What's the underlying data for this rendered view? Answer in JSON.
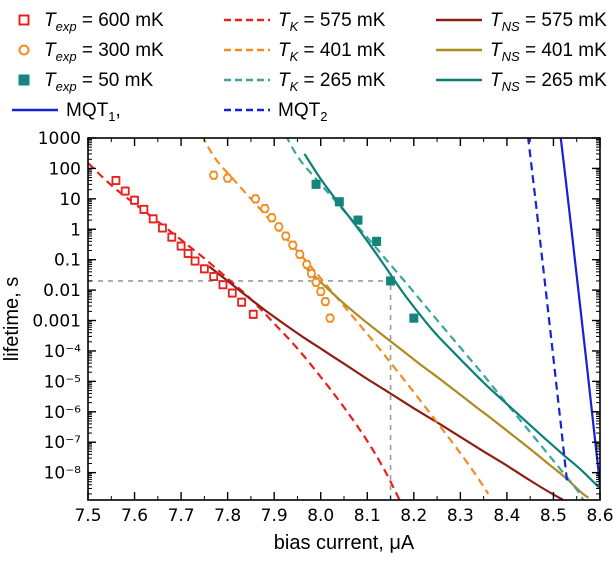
{
  "colors": {
    "red": "#e8211d",
    "dark_red": "#8e1d16",
    "orange": "#f18c22",
    "olive": "#ad8b21",
    "teal_dashed": "#3aa69e",
    "teal_solid": "#0d7f76",
    "teal_marker": "#15857b",
    "blue": "#1721d6",
    "gray": "#9c9c9c"
  },
  "legend": {
    "rows": [
      [
        {
          "id": "t-exp-600",
          "marker": "square-open",
          "color": "#e8211d",
          "label": {
            "pre": "T",
            "italic": true,
            "sub": "exp",
            "rest": " = 600 mK"
          }
        },
        {
          "id": "tk-575",
          "marker": "line-dashed",
          "color": "#e8211d",
          "label": {
            "pre": "T",
            "italic": true,
            "sub": "K",
            "rest": " = 575 mK"
          }
        },
        {
          "id": "tns-575",
          "marker": "line-solid",
          "color": "#8e1d16",
          "label": {
            "pre": "T",
            "italic": true,
            "sub": "NS",
            "rest": " = 575 mK"
          }
        }
      ],
      [
        {
          "id": "t-exp-300",
          "marker": "circle-open",
          "color": "#f18c22",
          "label": {
            "pre": "T",
            "italic": true,
            "sub": "exp",
            "rest": " = 300 mK"
          }
        },
        {
          "id": "tk-401",
          "marker": "line-dashed",
          "color": "#f18c22",
          "label": {
            "pre": "T",
            "italic": true,
            "sub": "K",
            "rest": " = 401 mK"
          }
        },
        {
          "id": "tns-401",
          "marker": "line-solid",
          "color": "#ad8b21",
          "label": {
            "pre": "T",
            "italic": true,
            "sub": "NS",
            "rest": " = 401 mK"
          }
        }
      ],
      [
        {
          "id": "t-exp-50",
          "marker": "square-filled",
          "color": "#15857b",
          "label": {
            "pre": "T",
            "italic": true,
            "sub": "exp",
            "rest": " = 50 mK"
          }
        },
        {
          "id": "tk-265",
          "marker": "line-dashed",
          "color": "#3aa69e",
          "label": {
            "pre": "T",
            "italic": true,
            "sub": "K",
            "rest": " = 265 mK"
          }
        },
        {
          "id": "tns-265",
          "marker": "line-solid",
          "color": "#0d7f76",
          "label": {
            "pre": "T",
            "italic": true,
            "sub": "NS",
            "rest": " = 265 mK"
          }
        }
      ],
      [
        {
          "id": "mqt-1",
          "marker": "line-solid",
          "color": "#1721d6",
          "label": {
            "pre": "MQT",
            "italic": false,
            "sub": "1",
            "rest": ","
          }
        },
        {
          "id": "mqt-2",
          "marker": "line-dashed",
          "color": "#1721d6",
          "label": {
            "pre": "MQT",
            "italic": false,
            "sub": "2",
            "rest": ""
          }
        }
      ]
    ]
  },
  "chart_data": {
    "type": "line",
    "title": "",
    "xlabel": "bias current, μA",
    "ylabel": "lifetime, s",
    "xlim": [
      7.5,
      8.6
    ],
    "ylim": [
      1.26e-09,
      1000
    ],
    "yscale": "log",
    "grid": false,
    "legend_position": "top",
    "x_ticks": [
      {
        "v": 7.5,
        "t": "7.5"
      },
      {
        "v": 7.6,
        "t": "7.6"
      },
      {
        "v": 7.7,
        "t": "7.7"
      },
      {
        "v": 7.8,
        "t": "7.8"
      },
      {
        "v": 7.9,
        "t": "7.9"
      },
      {
        "v": 8.0,
        "t": "8.0"
      },
      {
        "v": 8.1,
        "t": "8.1"
      },
      {
        "v": 8.2,
        "t": "8.2"
      },
      {
        "v": 8.3,
        "t": "8.3"
      },
      {
        "v": 8.4,
        "t": "8.4"
      },
      {
        "v": 8.5,
        "t": "8.5"
      },
      {
        "v": 8.6,
        "t": "8.6"
      }
    ],
    "y_ticks": [
      {
        "v": 1000,
        "t": "1000"
      },
      {
        "v": 100,
        "t": "100"
      },
      {
        "v": 10,
        "t": "10"
      },
      {
        "v": 1,
        "t": "1"
      },
      {
        "v": 0.1,
        "t": "0.1"
      },
      {
        "v": 0.01,
        "t": "0.01"
      },
      {
        "v": 0.001,
        "t": "0.001"
      },
      {
        "v": 0.0001,
        "t": "10⁻⁴"
      },
      {
        "v": 1e-05,
        "t": "10⁻⁵"
      },
      {
        "v": 1e-06,
        "t": "10⁻⁶"
      },
      {
        "v": 1e-07,
        "t": "10⁻⁷"
      },
      {
        "v": 1e-08,
        "t": "10⁻⁸"
      }
    ],
    "crosshair": {
      "x": 8.15,
      "y": 0.02,
      "color": "#9c9c9c"
    },
    "series": [
      {
        "id": "tk-575",
        "name": "T_K = 575 mK",
        "kind": "line",
        "style": "dashed",
        "color": "#e8211d",
        "points": [
          [
            7.48,
            300
          ],
          [
            7.55,
            28
          ],
          [
            7.6,
            7
          ],
          [
            7.65,
            1.8
          ],
          [
            7.7,
            0.45
          ],
          [
            7.75,
            0.11
          ],
          [
            7.8,
            0.024
          ],
          [
            7.85,
            0.005
          ],
          [
            7.9,
            0.0008
          ],
          [
            7.95,
            0.00012
          ],
          [
            8.0,
            1.4e-05
          ],
          [
            8.05,
            1.4e-06
          ],
          [
            8.1,
            1.1e-07
          ],
          [
            8.14,
            1e-08
          ],
          [
            8.17,
            1.2e-09
          ]
        ]
      },
      {
        "id": "tns-575",
        "name": "T_NS = 575 mK",
        "kind": "line",
        "style": "solid",
        "color": "#8e1d16",
        "points": [
          [
            7.76,
            0.06
          ],
          [
            7.8,
            0.02
          ],
          [
            7.84,
            0.0065
          ],
          [
            7.88,
            0.0022
          ],
          [
            7.92,
            0.0008
          ],
          [
            7.96,
            0.0003
          ],
          [
            8.0,
            0.00012
          ],
          [
            8.05,
            3.8e-05
          ],
          [
            8.1,
            1.2e-05
          ],
          [
            8.15,
            4e-06
          ],
          [
            8.2,
            1.3e-06
          ],
          [
            8.25,
            4.5e-07
          ],
          [
            8.3,
            1.5e-07
          ],
          [
            8.35,
            5e-08
          ],
          [
            8.4,
            1.7e-08
          ],
          [
            8.45,
            5.5e-09
          ],
          [
            8.5,
            1.9e-09
          ],
          [
            8.52,
            1.3e-09
          ]
        ]
      },
      {
        "id": "tk-401",
        "name": "T_K = 401 mK",
        "kind": "line",
        "style": "dashed",
        "color": "#f18c22",
        "points": [
          [
            7.732,
            3000
          ],
          [
            7.77,
            250
          ],
          [
            7.81,
            48
          ],
          [
            7.85,
            10
          ],
          [
            7.89,
            2.1
          ],
          [
            7.93,
            0.42
          ],
          [
            7.97,
            0.085
          ],
          [
            8.01,
            0.016
          ],
          [
            8.05,
            0.003
          ],
          [
            8.09,
            0.00055
          ],
          [
            8.13,
            0.0001
          ],
          [
            8.17,
            1.7e-05
          ],
          [
            8.21,
            2.8e-06
          ],
          [
            8.25,
            4.5e-07
          ],
          [
            8.29,
            7e-08
          ],
          [
            8.33,
            1e-08
          ],
          [
            8.36,
            2e-09
          ]
        ]
      },
      {
        "id": "tns-401",
        "name": "T_NS = 401 mK",
        "kind": "line",
        "style": "solid",
        "color": "#ad8b21",
        "points": [
          [
            7.97,
            0.05
          ],
          [
            8.01,
            0.013
          ],
          [
            8.05,
            0.0036
          ],
          [
            8.09,
            0.0011
          ],
          [
            8.13,
            0.00036
          ],
          [
            8.17,
            0.00012
          ],
          [
            8.21,
            4e-05
          ],
          [
            8.25,
            1.4e-05
          ],
          [
            8.29,
            4.8e-06
          ],
          [
            8.33,
            1.6e-06
          ],
          [
            8.37,
            5.5e-07
          ],
          [
            8.41,
            1.8e-07
          ],
          [
            8.45,
            6e-08
          ],
          [
            8.49,
            1.9e-08
          ],
          [
            8.53,
            6e-09
          ],
          [
            8.56,
            2.2e-09
          ],
          [
            8.575,
            1.5e-09
          ]
        ]
      },
      {
        "id": "tk-265",
        "name": "T_K = 265 mK",
        "kind": "line",
        "style": "dashed",
        "color": "#3aa69e",
        "points": [
          [
            7.912,
            3000
          ],
          [
            7.95,
            250
          ],
          [
            7.99,
            45
          ],
          [
            8.03,
            9
          ],
          [
            8.07,
            1.8
          ],
          [
            8.11,
            0.36
          ],
          [
            8.15,
            0.068
          ],
          [
            8.19,
            0.013
          ],
          [
            8.23,
            0.0024
          ],
          [
            8.27,
            0.00045
          ],
          [
            8.31,
            8.5e-05
          ],
          [
            8.35,
            1.6e-05
          ],
          [
            8.39,
            2.8e-06
          ],
          [
            8.43,
            5e-07
          ],
          [
            8.47,
            9e-08
          ],
          [
            8.51,
            1.6e-08
          ],
          [
            8.55,
            2.8e-09
          ],
          [
            8.565,
            1.2e-09
          ]
        ]
      },
      {
        "id": "tns-265",
        "name": "T_NS = 265 mK",
        "kind": "line",
        "style": "solid",
        "color": "#0d7f76",
        "points": [
          [
            7.965,
            300
          ],
          [
            8.0,
            45
          ],
          [
            8.035,
            8.5
          ],
          [
            8.07,
            1.7
          ],
          [
            8.105,
            0.32
          ],
          [
            8.14,
            0.055
          ],
          [
            8.175,
            0.009
          ],
          [
            8.21,
            0.0018
          ],
          [
            8.245,
            0.0004
          ],
          [
            8.28,
            0.00011
          ],
          [
            8.32,
            2.6e-05
          ],
          [
            8.36,
            6.5e-06
          ],
          [
            8.4,
            1.8e-06
          ],
          [
            8.44,
            5e-07
          ],
          [
            8.48,
            1.4e-07
          ],
          [
            8.52,
            4e-08
          ],
          [
            8.56,
            1.2e-08
          ],
          [
            8.6,
            3e-09
          ]
        ]
      },
      {
        "id": "mqt-1",
        "name": "MQT_1",
        "kind": "line",
        "style": "solid",
        "color": "#1721d6",
        "points": [
          [
            8.512,
            3000
          ],
          [
            8.527,
            35
          ],
          [
            8.542,
            0.35
          ],
          [
            8.557,
            0.0033
          ],
          [
            8.572,
            3e-05
          ],
          [
            8.587,
            2.6e-07
          ],
          [
            8.6,
            4e-09
          ]
        ]
      },
      {
        "id": "mqt-2",
        "name": "MQT_2",
        "kind": "line",
        "style": "dashed",
        "color": "#1721d6",
        "points": [
          [
            8.442,
            3000
          ],
          [
            8.457,
            35
          ],
          [
            8.472,
            0.35
          ],
          [
            8.487,
            0.0033
          ],
          [
            8.502,
            3e-05
          ],
          [
            8.517,
            2.6e-07
          ],
          [
            8.53,
            4e-09
          ]
        ]
      },
      {
        "id": "t-exp-600",
        "name": "T_exp = 600 mK",
        "kind": "scatter",
        "marker": "square-open",
        "color": "#e8211d",
        "points": [
          [
            7.56,
            40
          ],
          [
            7.58,
            18
          ],
          [
            7.6,
            9
          ],
          [
            7.62,
            4.5
          ],
          [
            7.64,
            2.2
          ],
          [
            7.66,
            1.1
          ],
          [
            7.68,
            0.55
          ],
          [
            7.7,
            0.28
          ],
          [
            7.715,
            0.16
          ],
          [
            7.73,
            0.09
          ],
          [
            7.75,
            0.05
          ],
          [
            7.77,
            0.028
          ],
          [
            7.79,
            0.015
          ],
          [
            7.81,
            0.008
          ],
          [
            7.83,
            0.004
          ],
          [
            7.855,
            0.0016
          ]
        ]
      },
      {
        "id": "t-exp-300",
        "name": "T_exp = 300 mK",
        "kind": "scatter",
        "marker": "circle-open",
        "color": "#f18c22",
        "points": [
          [
            7.77,
            60
          ],
          [
            7.8,
            48
          ],
          [
            7.86,
            10
          ],
          [
            7.88,
            4.8
          ],
          [
            7.895,
            2.4
          ],
          [
            7.91,
            1.2
          ],
          [
            7.925,
            0.6
          ],
          [
            7.94,
            0.3
          ],
          [
            7.955,
            0.15
          ],
          [
            7.97,
            0.07
          ],
          [
            7.98,
            0.035
          ],
          [
            7.99,
            0.018
          ],
          [
            8.0,
            0.009
          ],
          [
            8.01,
            0.0042
          ],
          [
            8.02,
            0.0012
          ]
        ]
      },
      {
        "id": "t-exp-50",
        "name": "T_exp = 50 mK",
        "kind": "scatter",
        "marker": "square-filled",
        "color": "#15857b",
        "points": [
          [
            7.99,
            30
          ],
          [
            8.04,
            8
          ],
          [
            8.08,
            2
          ],
          [
            8.12,
            0.4
          ],
          [
            8.15,
            0.02
          ],
          [
            8.2,
            0.0012
          ]
        ]
      }
    ]
  }
}
